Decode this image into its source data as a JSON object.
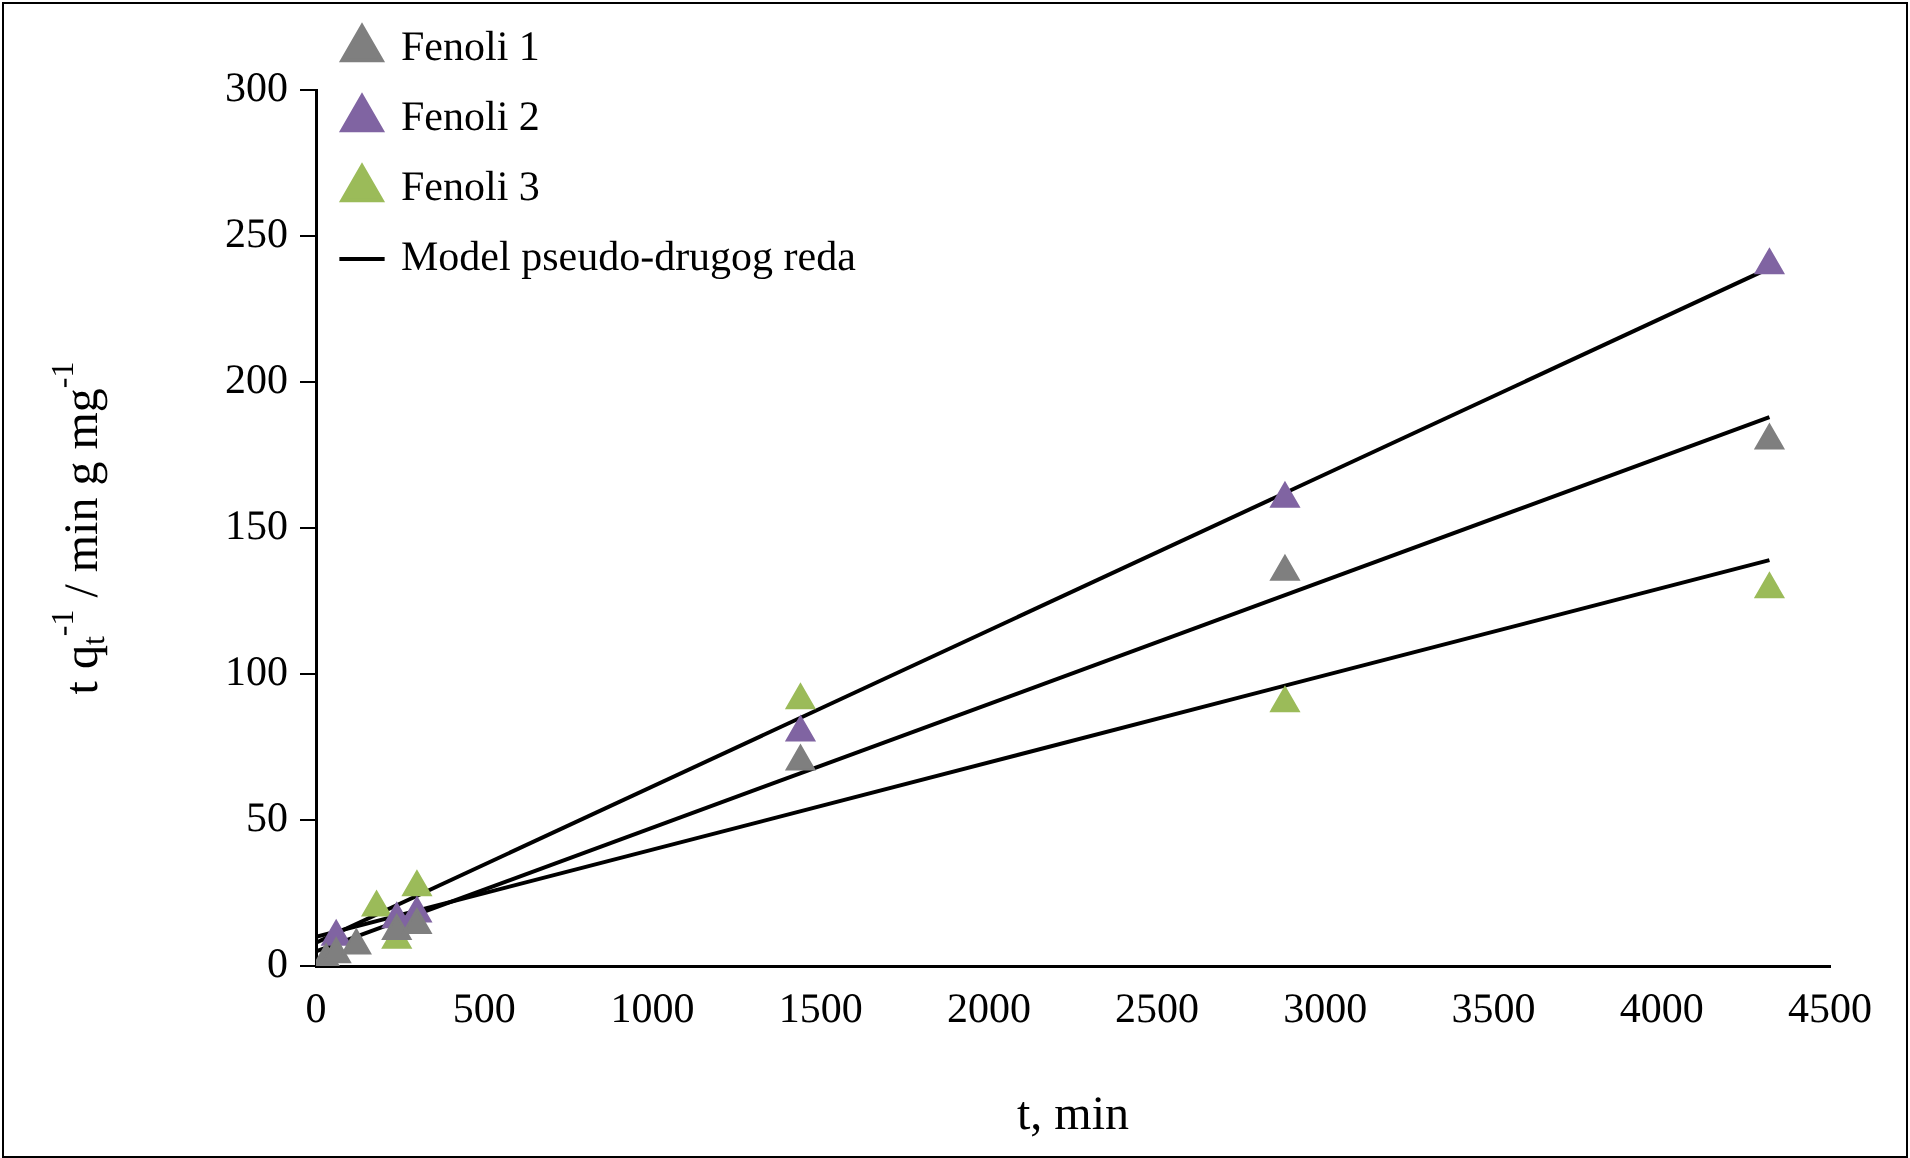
{
  "chart_data": {
    "type": "scatter",
    "xlabel": "t, min",
    "ylabel": "t q$_{t}$$^{-1}$ / min g mg$^{-1}$",
    "x": [
      30,
      60,
      120,
      240,
      300,
      1440,
      2880,
      4320
    ],
    "series": [
      {
        "name": "Fenoli 1",
        "color": "#7f7f7f",
        "values": [
          2,
          4,
          7,
          12,
          14,
          70,
          135,
          180
        ]
      },
      {
        "name": "Fenoli 2",
        "color": "#8064a2",
        "x": [
          60,
          240,
          300,
          1440,
          2880,
          4320
        ],
        "values": [
          10,
          16,
          18,
          80,
          160,
          240
        ]
      },
      {
        "name": "Fenoli 3",
        "color": "#9bbb59",
        "x": [
          180,
          240,
          300,
          1440,
          2880,
          4320
        ],
        "values": [
          20,
          9,
          27,
          91,
          90,
          129
        ]
      },
      {
        "name": "Model pseudo-drugog reda",
        "type": "line",
        "color": "#000000",
        "marker": "none",
        "x": [
          0,
          4320
        ],
        "values": [
          8,
          239
        ]
      },
      {
        "type": "line",
        "color": "#000000",
        "marker": "none",
        "x": [
          0,
          4320
        ],
        "values": [
          5,
          188
        ]
      },
      {
        "type": "line",
        "color": "#000000",
        "marker": "none",
        "x": [
          0,
          4320
        ],
        "values": [
          10,
          139
        ]
      }
    ],
    "marker": "triangle",
    "xlim": [
      0,
      4500
    ],
    "xticks": [
      0,
      500,
      1000,
      1500,
      2000,
      2500,
      3000,
      3500,
      4000,
      4500
    ],
    "ylim": [
      0,
      300
    ],
    "yticks": [
      0,
      50,
      100,
      150,
      200,
      250,
      300
    ],
    "grid": false,
    "legend": "top left"
  }
}
